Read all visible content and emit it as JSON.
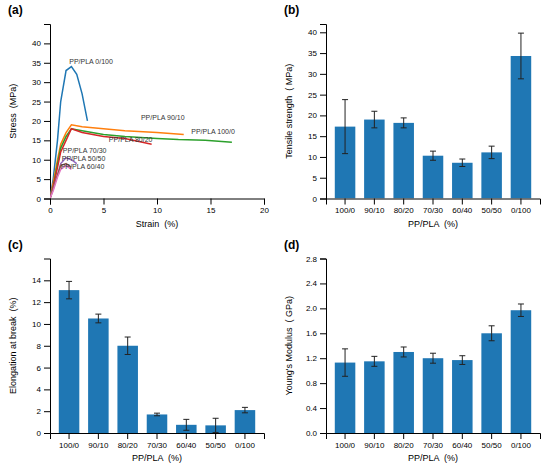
{
  "chart_data": [
    {
      "type": "line",
      "title": "(a)",
      "xlabel": "Strain  (%)",
      "ylabel": "Stress  (MPa)",
      "series": [
        {
          "x": [
            0,
            0.3,
            0.7,
            1.0,
            1.5,
            2.0,
            2.5,
            3.0,
            3.5
          ],
          "values": [
            0,
            5,
            15,
            25,
            33,
            34,
            32,
            27,
            20
          ]
        },
        {
          "x": [
            0,
            0.3,
            0.7,
            1.0,
            1.5,
            2.0,
            3.0,
            5.0,
            7.0,
            10.0,
            12.5
          ],
          "values": [
            0,
            4,
            10,
            14,
            17,
            19,
            18.5,
            18,
            17.5,
            17,
            16.5
          ]
        },
        {
          "x": [
            0,
            0.3,
            0.7,
            1.0,
            1.5,
            2.0,
            3.0,
            5.0,
            7.0,
            10.0,
            12.0,
            14.5,
            17.0
          ],
          "values": [
            0,
            3,
            9,
            13,
            16,
            18,
            17.5,
            16.5,
            16,
            15.5,
            15.2,
            15.0,
            14.5
          ]
        },
        {
          "x": [
            0,
            0.3,
            0.7,
            1.0,
            1.5,
            2.0,
            3.0,
            5.0,
            7.0,
            9.5
          ],
          "values": [
            0,
            3,
            8,
            12,
            15,
            18,
            17,
            16,
            15.5,
            14
          ]
        },
        {
          "x": [
            0,
            0.3,
            0.7,
            1.0,
            1.5,
            2.0,
            2.5
          ],
          "values": [
            0,
            2.5,
            6,
            9,
            10.5,
            10,
            9
          ]
        },
        {
          "x": [
            0,
            0.3,
            0.7,
            1.0,
            1.5,
            2.0
          ],
          "values": [
            0,
            2.5,
            6,
            8.5,
            9,
            8
          ]
        },
        {
          "x": [
            0,
            0.3,
            0.7,
            1.0,
            1.5,
            2.0
          ],
          "values": [
            0,
            2,
            5.5,
            7.5,
            8.5,
            7.5
          ]
        }
      ],
      "annotations": [
        {
          "text": "PP/PLA 0/100",
          "x": 1.8,
          "y": 34.5
        },
        {
          "text": "PP/PLA 90/10",
          "x": 8.5,
          "y": 20.0
        },
        {
          "text": "PP/PLA 100/0",
          "x": 13.2,
          "y": 16.5
        },
        {
          "text": "PP/PLA 80/20",
          "x": 5.5,
          "y": 14.3
        },
        {
          "text": "PP/PLA 70/30",
          "x": 1.2,
          "y": 11.5
        },
        {
          "text": "PP/PLA 50/50",
          "x": 1.1,
          "y": 9.5
        },
        {
          "text": "PP/PLA 60/40",
          "x": 1.0,
          "y": 7.3
        }
      ],
      "xlim": [
        0,
        20
      ],
      "ylim": [
        0,
        45
      ],
      "xticks": [
        0,
        5,
        10,
        15,
        20
      ],
      "yticks": [
        0,
        5,
        10,
        15,
        20,
        25,
        30,
        35,
        40
      ]
    },
    {
      "type": "bar",
      "title": "(b)",
      "xlabel": "PP/PLA  (%)",
      "ylabel": "Tensile strength  ( MPa)",
      "categories": [
        "100/0",
        "90/10",
        "80/20",
        "70/30",
        "60/40",
        "50/50",
        "0/100"
      ],
      "values": [
        17.3,
        19.0,
        18.2,
        10.3,
        8.6,
        11.1,
        34.3
      ],
      "errors": [
        6.5,
        2.0,
        1.2,
        1.1,
        0.9,
        1.5,
        5.5
      ],
      "ylim": [
        0,
        42
      ],
      "yticks": [
        0,
        5,
        10,
        15,
        20,
        25,
        30,
        35,
        40
      ]
    },
    {
      "type": "bar",
      "title": "(c)",
      "xlabel": "PP/PLA  (%)",
      "ylabel": "Elongation at break  (%)",
      "categories": [
        "100/0",
        "90/10",
        "80/20",
        "70/30",
        "60/40",
        "50/50",
        "0/100"
      ],
      "values": [
        13.1,
        10.5,
        8.0,
        1.7,
        0.75,
        0.7,
        2.1
      ],
      "errors": [
        0.8,
        0.4,
        0.8,
        0.12,
        0.5,
        0.65,
        0.25
      ],
      "ylim": [
        0,
        16
      ],
      "yticks": [
        0,
        2,
        4,
        6,
        8,
        10,
        12,
        14
      ]
    },
    {
      "type": "bar",
      "title": "(d)",
      "xlabel": "PP/PLA  (%)",
      "ylabel": "Young's Modulus  ( GPa)",
      "categories": [
        "100/0",
        "90/10",
        "80/20",
        "70/30",
        "60/40",
        "50/50",
        "0/100"
      ],
      "values": [
        1.13,
        1.15,
        1.3,
        1.2,
        1.17,
        1.6,
        1.97
      ],
      "errors": [
        0.22,
        0.08,
        0.08,
        0.08,
        0.07,
        0.12,
        0.1
      ],
      "ylim": [
        0,
        2.8
      ],
      "yticks": [
        {
          "value": 0,
          "label": "0.0"
        },
        0.4,
        0.8,
        1.2,
        1.6,
        {
          "value": 2,
          "label": "2.0"
        },
        2.4,
        2.8
      ]
    }
  ]
}
